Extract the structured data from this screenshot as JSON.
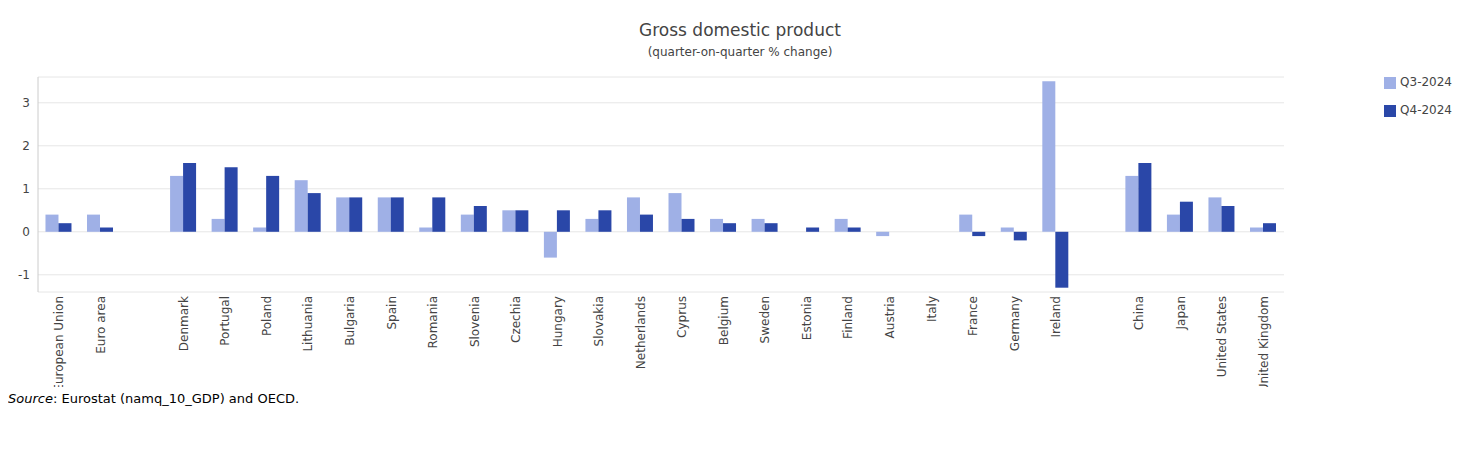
{
  "chart_data": {
    "type": "bar",
    "title": "Gross domestic product",
    "subtitle": "(quarter-on-quarter % change)",
    "source": "Source: Eurostat (namq_10_GDP) and OECD.",
    "categories": [
      "European Union",
      "Euro area",
      null,
      "Denmark",
      "Portugal",
      "Poland",
      "Lithuania",
      "Bulgaria",
      "Spain",
      "Romania",
      "Slovenia",
      "Czechia",
      "Hungary",
      "Slovakia",
      "Netherlands",
      "Cyprus",
      "Belgium",
      "Sweden",
      "Estonia",
      "Finland",
      "Austria",
      "Italy",
      "France",
      "Germany",
      "Ireland",
      null,
      "China",
      "Japan",
      "United States",
      "United Kingdom"
    ],
    "series": [
      {
        "name": "Q3-2024",
        "color": "#9fb0e6",
        "values": [
          0.4,
          0.4,
          null,
          1.3,
          0.3,
          0.1,
          1.2,
          0.8,
          0.8,
          0.1,
          0.4,
          0.5,
          -0.6,
          0.3,
          0.8,
          0.9,
          0.3,
          0.3,
          0.0,
          0.3,
          -0.1,
          0.0,
          0.4,
          0.1,
          3.5,
          null,
          1.3,
          0.4,
          0.8,
          0.1
        ]
      },
      {
        "name": "Q4-2024",
        "color": "#2a47a8",
        "values": [
          0.2,
          0.1,
          null,
          1.6,
          1.5,
          1.3,
          0.9,
          0.8,
          0.8,
          0.8,
          0.6,
          0.5,
          0.5,
          0.5,
          0.4,
          0.3,
          0.2,
          0.2,
          0.1,
          0.1,
          0.0,
          0.0,
          -0.1,
          -0.2,
          -1.3,
          null,
          1.6,
          0.7,
          0.6,
          0.2
        ]
      }
    ],
    "ylim": [
      -1.4,
      3.6
    ],
    "yticks": [
      -1,
      0,
      1,
      2,
      3
    ],
    "grid": true,
    "legend": "top-right"
  }
}
